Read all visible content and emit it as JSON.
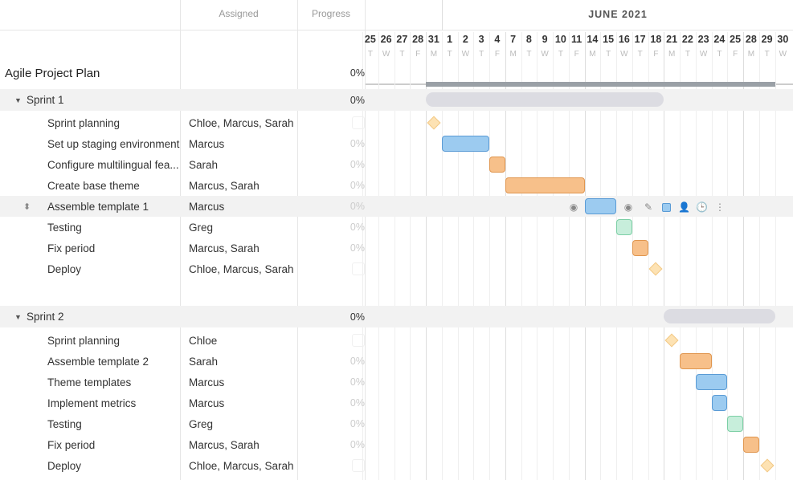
{
  "header": {
    "assigned": "Assigned",
    "progress": "Progress",
    "month": "JUNE 2021"
  },
  "days": [
    {
      "d": "25",
      "w": "T"
    },
    {
      "d": "26",
      "w": "W"
    },
    {
      "d": "27",
      "w": "T"
    },
    {
      "d": "28",
      "w": "F"
    },
    {
      "d": "31",
      "w": "M"
    },
    {
      "d": "1",
      "w": "T"
    },
    {
      "d": "2",
      "w": "W"
    },
    {
      "d": "3",
      "w": "T"
    },
    {
      "d": "4",
      "w": "F"
    },
    {
      "d": "7",
      "w": "M"
    },
    {
      "d": "8",
      "w": "T"
    },
    {
      "d": "9",
      "w": "W"
    },
    {
      "d": "10",
      "w": "T"
    },
    {
      "d": "11",
      "w": "F"
    },
    {
      "d": "14",
      "w": "M"
    },
    {
      "d": "15",
      "w": "T"
    },
    {
      "d": "16",
      "w": "W"
    },
    {
      "d": "17",
      "w": "T"
    },
    {
      "d": "18",
      "w": "F"
    },
    {
      "d": "21",
      "w": "M"
    },
    {
      "d": "22",
      "w": "T"
    },
    {
      "d": "23",
      "w": "W"
    },
    {
      "d": "24",
      "w": "T"
    },
    {
      "d": "25",
      "w": "F"
    },
    {
      "d": "28",
      "w": "M"
    },
    {
      "d": "29",
      "w": "T"
    },
    {
      "d": "30",
      "w": "W"
    }
  ],
  "colors": {
    "blue": "#9ccbf0",
    "blueBorder": "#5a9bd5",
    "orange": "#f7c08a",
    "orangeBorder": "#e0964f",
    "green": "#c7eedb",
    "greenBorder": "#7ccfa5",
    "summary": "#dcdce2",
    "project": "#9aa0a6"
  },
  "project": {
    "name": "Agile Project Plan",
    "progress": "0%",
    "start": 4,
    "len": 22
  },
  "rows": [
    {
      "type": "group",
      "name": "Sprint 1",
      "progress": "0%",
      "start": 4,
      "len": 15
    },
    {
      "type": "milestone",
      "name": "Sprint planning",
      "assigned": "Chloe, Marcus, Sarah",
      "start": 4
    },
    {
      "type": "task",
      "name": "Set up staging environment",
      "assigned": "Marcus",
      "progress": "0%",
      "start": 5,
      "len": 3,
      "color": "blue"
    },
    {
      "type": "task",
      "name": "Configure multilingual fea...",
      "assigned": "Sarah",
      "progress": "0%",
      "start": 8,
      "len": 1,
      "color": "orange"
    },
    {
      "type": "task",
      "name": "Create base theme",
      "assigned": "Marcus, Sarah",
      "progress": "0%",
      "start": 9,
      "len": 5,
      "color": "orange"
    },
    {
      "type": "task",
      "name": "Assemble template 1",
      "assigned": "Marcus",
      "progress": "0%",
      "start": 14,
      "len": 2,
      "color": "blue",
      "selected": true
    },
    {
      "type": "task",
      "name": "Testing",
      "assigned": "Greg",
      "progress": "0%",
      "start": 16,
      "len": 1,
      "color": "green"
    },
    {
      "type": "task",
      "name": "Fix period",
      "assigned": "Marcus, Sarah",
      "progress": "0%",
      "start": 17,
      "len": 1,
      "color": "orange"
    },
    {
      "type": "milestone",
      "name": "Deploy",
      "assigned": "Chloe, Marcus, Sarah",
      "start": 18
    },
    {
      "type": "blank"
    },
    {
      "type": "group",
      "name": "Sprint 2",
      "progress": "0%",
      "start": 19,
      "len": 7
    },
    {
      "type": "milestone",
      "name": "Sprint planning",
      "assigned": "Chloe",
      "start": 19
    },
    {
      "type": "task",
      "name": "Assemble template 2",
      "assigned": "Sarah",
      "progress": "0%",
      "start": 20,
      "len": 2,
      "color": "orange"
    },
    {
      "type": "task",
      "name": "Theme templates",
      "assigned": "Marcus",
      "progress": "0%",
      "start": 21,
      "len": 2,
      "color": "blue"
    },
    {
      "type": "task",
      "name": "Implement metrics",
      "assigned": "Marcus",
      "progress": "0%",
      "start": 22,
      "len": 1,
      "color": "blue"
    },
    {
      "type": "task",
      "name": "Testing",
      "assigned": "Greg",
      "progress": "0%",
      "start": 23,
      "len": 1,
      "color": "green"
    },
    {
      "type": "task",
      "name": "Fix period",
      "assigned": "Marcus, Sarah",
      "progress": "0%",
      "start": 24,
      "len": 1,
      "color": "orange"
    },
    {
      "type": "milestone",
      "name": "Deploy",
      "assigned": "Chloe, Marcus, Sarah",
      "start": 25
    }
  ]
}
